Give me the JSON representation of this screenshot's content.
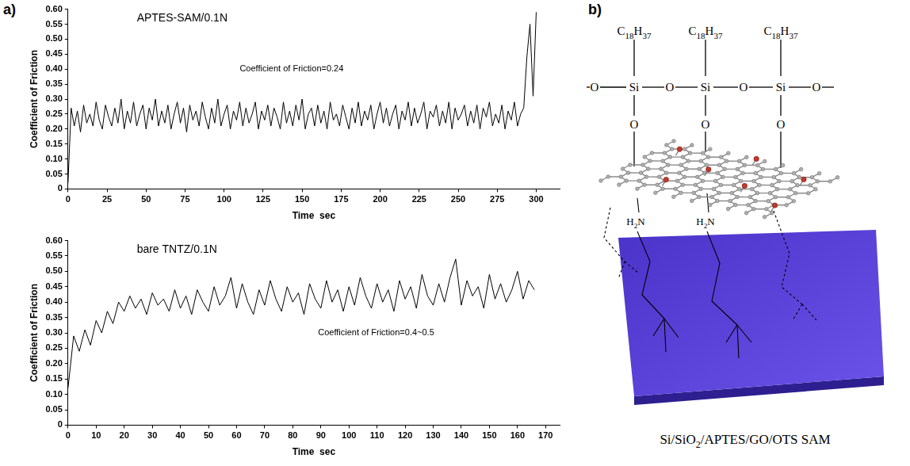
{
  "panel_labels": [
    "a)",
    "b)"
  ],
  "chart_data": [
    {
      "type": "line",
      "title": "APTES-SAM/0.1N",
      "x_label": "Time  sec",
      "y_label": "Coefficient of Friction",
      "color": "#000000",
      "grid": false,
      "xlim": [
        0,
        315
      ],
      "xticks": [
        0,
        25,
        50,
        75,
        100,
        125,
        150,
        175,
        200,
        225,
        250,
        275,
        300
      ],
      "ylim": [
        0,
        0.6
      ],
      "yticks": [
        0,
        0.05,
        {
          "value": 0.1,
          "label": "0.10"
        },
        0.15,
        {
          "value": 0.2,
          "label": "0.20"
        },
        0.25,
        {
          "value": 0.3,
          "label": "0.30"
        },
        0.35,
        {
          "value": 0.4,
          "label": "0.40"
        },
        0.45,
        {
          "value": 0.5,
          "label": "0.50"
        },
        0.55,
        {
          "value": 0.6,
          "label": "0.60"
        }
      ],
      "annotations": [
        {
          "text": "Coefficient of Friction=0.24",
          "x": 110,
          "y": 0.4
        }
      ],
      "x": [
        0,
        2,
        4,
        6,
        8,
        10,
        12,
        14,
        16,
        18,
        20,
        22,
        24,
        26,
        28,
        30,
        32,
        34,
        36,
        38,
        40,
        42,
        44,
        46,
        48,
        50,
        52,
        54,
        56,
        58,
        60,
        62,
        64,
        66,
        68,
        70,
        72,
        74,
        76,
        78,
        80,
        82,
        84,
        86,
        88,
        90,
        92,
        94,
        96,
        98,
        100,
        102,
        104,
        106,
        108,
        110,
        112,
        114,
        116,
        118,
        120,
        122,
        124,
        126,
        128,
        130,
        132,
        134,
        136,
        138,
        140,
        142,
        144,
        146,
        148,
        150,
        152,
        154,
        156,
        158,
        160,
        162,
        164,
        166,
        168,
        170,
        172,
        174,
        176,
        178,
        180,
        182,
        184,
        186,
        188,
        190,
        192,
        194,
        196,
        198,
        200,
        202,
        204,
        206,
        208,
        210,
        212,
        214,
        216,
        218,
        220,
        222,
        224,
        226,
        228,
        230,
        232,
        234,
        236,
        238,
        240,
        242,
        244,
        246,
        248,
        250,
        252,
        254,
        256,
        258,
        260,
        262,
        264,
        266,
        268,
        270,
        272,
        274,
        276,
        278,
        280,
        282,
        284,
        286,
        288,
        290,
        292,
        294,
        296,
        298,
        300
      ],
      "values": [
        0.02,
        0.27,
        0.21,
        0.26,
        0.19,
        0.28,
        0.22,
        0.25,
        0.21,
        0.29,
        0.23,
        0.2,
        0.28,
        0.24,
        0.21,
        0.27,
        0.22,
        0.3,
        0.2,
        0.26,
        0.22,
        0.29,
        0.21,
        0.25,
        0.28,
        0.2,
        0.27,
        0.23,
        0.3,
        0.21,
        0.26,
        0.22,
        0.28,
        0.2,
        0.25,
        0.29,
        0.22,
        0.27,
        0.19,
        0.28,
        0.23,
        0.26,
        0.21,
        0.29,
        0.24,
        0.2,
        0.27,
        0.22,
        0.3,
        0.21,
        0.25,
        0.28,
        0.2,
        0.26,
        0.23,
        0.29,
        0.21,
        0.27,
        0.22,
        0.25,
        0.29,
        0.2,
        0.26,
        0.23,
        0.28,
        0.21,
        0.27,
        0.24,
        0.2,
        0.29,
        0.22,
        0.26,
        0.21,
        0.28,
        0.23,
        0.3,
        0.2,
        0.25,
        0.27,
        0.21,
        0.28,
        0.22,
        0.26,
        0.2,
        0.29,
        0.23,
        0.25,
        0.21,
        0.28,
        0.24,
        0.2,
        0.27,
        0.22,
        0.29,
        0.21,
        0.26,
        0.23,
        0.28,
        0.2,
        0.25,
        0.29,
        0.22,
        0.27,
        0.21,
        0.25,
        0.28,
        0.2,
        0.26,
        0.23,
        0.29,
        0.21,
        0.27,
        0.22,
        0.25,
        0.29,
        0.2,
        0.26,
        0.24,
        0.28,
        0.21,
        0.26,
        0.22,
        0.29,
        0.2,
        0.27,
        0.23,
        0.25,
        0.28,
        0.21,
        0.26,
        0.22,
        0.28,
        0.2,
        0.27,
        0.24,
        0.29,
        0.21,
        0.25,
        0.22,
        0.28,
        0.2,
        0.26,
        0.23,
        0.29,
        0.21,
        0.25,
        0.27,
        0.44,
        0.55,
        0.31,
        0.59
      ]
    },
    {
      "type": "line",
      "title": "bare TNTZ/0.1N",
      "x_label": "Time  sec",
      "y_label": "Coefficient of Friction",
      "color": "#000000",
      "grid": false,
      "xlim": [
        0,
        175
      ],
      "xticks": [
        0,
        10,
        20,
        30,
        40,
        50,
        60,
        70,
        80,
        90,
        100,
        110,
        120,
        130,
        140,
        150,
        160,
        170
      ],
      "ylim": [
        0,
        0.6
      ],
      "yticks": [
        0,
        0.05,
        {
          "value": 0.1,
          "label": "0.10"
        },
        0.15,
        {
          "value": 0.2,
          "label": "0.20"
        },
        0.25,
        {
          "value": 0.3,
          "label": "0.30"
        },
        0.35,
        {
          "value": 0.4,
          "label": "0.40"
        },
        0.45,
        {
          "value": 0.5,
          "label": "0.50"
        },
        0.55,
        {
          "value": 0.6,
          "label": "0.60"
        }
      ],
      "annotations": [
        {
          "text": "Coefficient of Friction=0.4~0.5",
          "x": 89,
          "y": 0.3
        }
      ],
      "x": [
        0,
        2,
        4,
        6,
        8,
        10,
        12,
        14,
        16,
        18,
        20,
        22,
        24,
        26,
        28,
        30,
        32,
        34,
        36,
        38,
        40,
        42,
        44,
        46,
        48,
        50,
        52,
        54,
        56,
        58,
        60,
        62,
        64,
        66,
        68,
        70,
        72,
        74,
        76,
        78,
        80,
        82,
        84,
        86,
        88,
        90,
        92,
        94,
        96,
        98,
        100,
        102,
        104,
        106,
        108,
        110,
        112,
        114,
        116,
        118,
        120,
        122,
        124,
        126,
        128,
        130,
        132,
        134,
        136,
        138,
        140,
        142,
        144,
        146,
        148,
        150,
        152,
        154,
        156,
        158,
        160,
        162,
        164,
        166
      ],
      "values": [
        0.12,
        0.29,
        0.24,
        0.31,
        0.26,
        0.34,
        0.3,
        0.37,
        0.33,
        0.4,
        0.37,
        0.42,
        0.38,
        0.41,
        0.36,
        0.43,
        0.39,
        0.41,
        0.37,
        0.44,
        0.38,
        0.42,
        0.36,
        0.44,
        0.4,
        0.37,
        0.45,
        0.39,
        0.42,
        0.48,
        0.38,
        0.46,
        0.4,
        0.36,
        0.44,
        0.39,
        0.47,
        0.41,
        0.37,
        0.45,
        0.4,
        0.43,
        0.36,
        0.46,
        0.41,
        0.38,
        0.47,
        0.4,
        0.44,
        0.37,
        0.45,
        0.39,
        0.48,
        0.42,
        0.38,
        0.46,
        0.4,
        0.44,
        0.37,
        0.47,
        0.41,
        0.45,
        0.38,
        0.49,
        0.42,
        0.39,
        0.46,
        0.4,
        0.48,
        0.54,
        0.39,
        0.47,
        0.42,
        0.45,
        0.38,
        0.49,
        0.41,
        0.46,
        0.4,
        0.44,
        0.5,
        0.41,
        0.47,
        0.44
      ]
    }
  ],
  "diagram": {
    "ots_groups": [
      {
        "alkyl": "C18H37",
        "si": "Si"
      },
      {
        "alkyl": "C18H37",
        "si": "Si"
      },
      {
        "alkyl": "C18H37",
        "si": "Si"
      }
    ],
    "bridge_oxygen": "O",
    "amines": [
      "H2N",
      "H2N"
    ],
    "caption": "Si/SiO2/APTES/GO/OTS SAM"
  }
}
